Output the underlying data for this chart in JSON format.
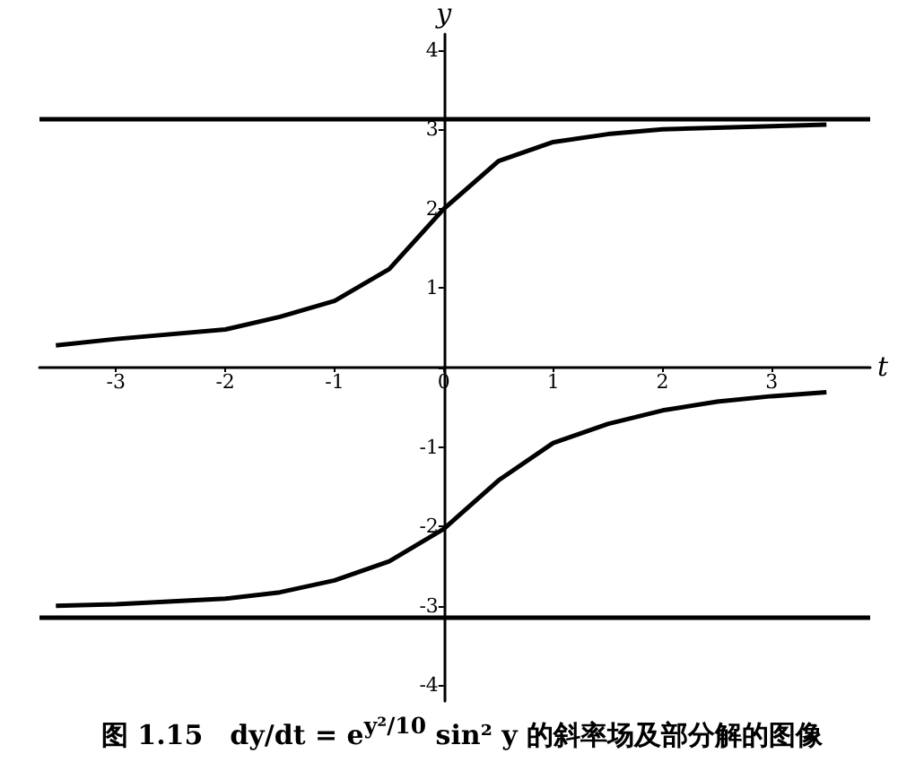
{
  "chart_data": {
    "type": "line",
    "title": "图 1.15　dy/dt = e$^{y²/10}$ sin² y 的斜率场及部分解的图像",
    "xlabel": "t",
    "ylabel": "y",
    "xlim": [
      -3.7,
      3.9
    ],
    "ylim": [
      -4.2,
      4.2
    ],
    "xticks": [
      -3,
      -2,
      -1,
      0,
      1,
      2,
      3
    ],
    "yticks": [
      -4,
      -3,
      -2,
      -1,
      {
        "value": 0,
        "label": null
      },
      1,
      2,
      3,
      4
    ],
    "grid": false,
    "marker": "none",
    "line_style": "solid",
    "series": [
      {
        "color": "#000000",
        "x": [
          -3.55,
          -3,
          -2,
          -1.5,
          -1,
          -0.5,
          0,
          0.5,
          1,
          1.5,
          2,
          3,
          3.5
        ],
        "values": [
          0.28,
          0.36,
          0.48,
          0.64,
          0.84,
          1.24,
          2.0,
          2.6,
          2.84,
          2.94,
          3.0,
          3.04,
          3.06
        ]
      },
      {
        "color": "#000000",
        "x": [
          -3.55,
          -3,
          -2,
          -1.5,
          -1,
          -0.5,
          0,
          0.5,
          1,
          1.5,
          2,
          2.5,
          3,
          3.5
        ],
        "values": [
          -3.0,
          -2.98,
          -2.91,
          -2.83,
          -2.68,
          -2.44,
          -2.03,
          -1.42,
          -0.95,
          -0.71,
          -0.54,
          -0.43,
          -0.36,
          -0.31
        ]
      }
    ],
    "ref_lines": [
      {
        "axis": "y",
        "value": 3.14,
        "color": "#000000"
      },
      {
        "axis": "y",
        "value": -3.14,
        "color": "#000000"
      }
    ]
  }
}
